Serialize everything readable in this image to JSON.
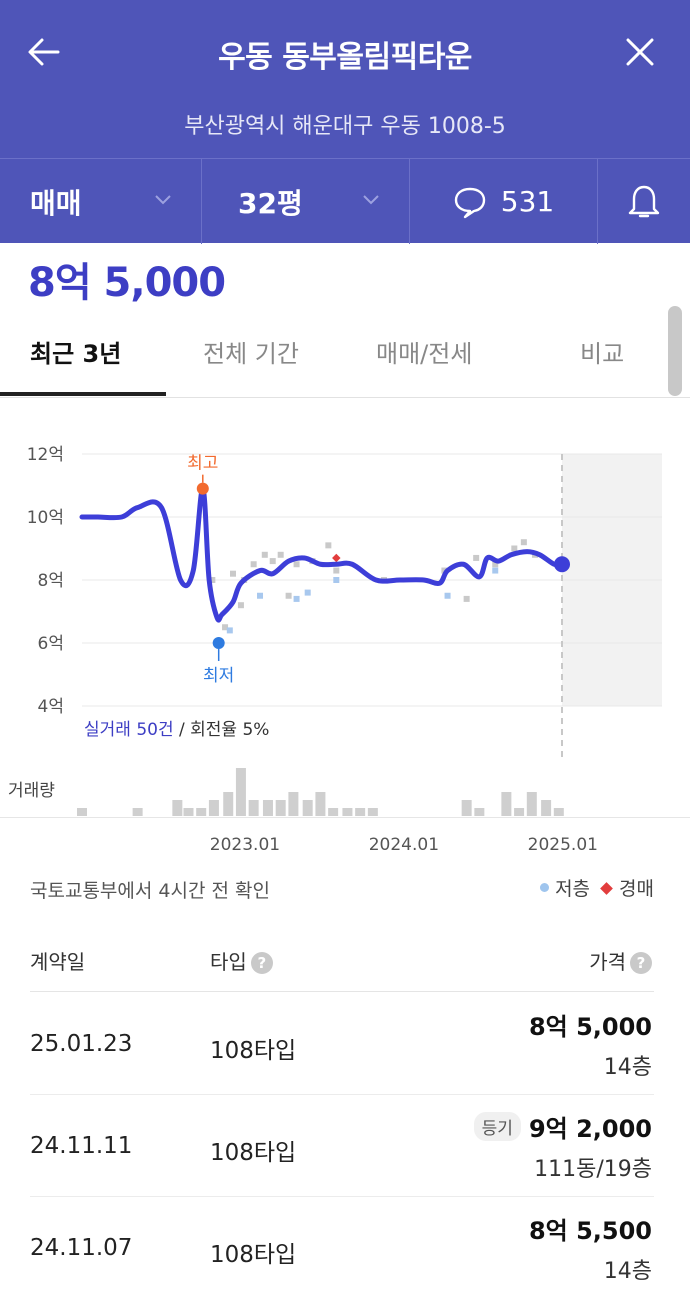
{
  "header": {
    "title": "우동 동부올림픽타운",
    "address": "부산광역시 해운대구 우동 1008-5",
    "bg_color": "#4f55b8"
  },
  "filters": {
    "deal_type": "매매",
    "area": "32평",
    "comment_count": "531"
  },
  "price_now": "8억 5,000",
  "tabs": [
    "최근 3년",
    "전체 기간",
    "매매/전세",
    "비교"
  ],
  "chart_data": {
    "type": "line",
    "y_ticks": [
      "12억",
      "10억",
      "8억",
      "6억",
      "4억"
    ],
    "ylim": [
      4,
      12
    ],
    "x_ticks": [
      "2023.01",
      "2024.01",
      "2025.01"
    ],
    "high_label": "최고",
    "low_label": "최저",
    "summary_highlight": "실거래 50건",
    "summary_rest": " / 회전율 5%",
    "volume_label": "거래량",
    "series": [
      {
        "x": [
          2022.0,
          2022.1,
          2022.25,
          2022.35,
          2022.5,
          2022.62,
          2022.7,
          2022.76,
          2022.8,
          2022.85,
          2022.88,
          2022.95,
          2023.0,
          2023.12,
          2023.2,
          2023.3,
          2023.4,
          2023.5,
          2023.6,
          2023.7,
          2023.85,
          2024.0,
          2024.15,
          2024.25,
          2024.3,
          2024.4,
          2024.5,
          2024.55,
          2024.62,
          2024.7,
          2024.8,
          2024.88,
          2024.97,
          2025.02
        ],
        "y": [
          10.0,
          10.0,
          10.0,
          10.3,
          10.3,
          8.0,
          8.3,
          10.9,
          8.0,
          6.8,
          6.9,
          7.3,
          7.9,
          8.3,
          8.2,
          8.6,
          8.7,
          8.5,
          8.5,
          8.5,
          8.0,
          8.0,
          8.0,
          7.9,
          8.3,
          8.5,
          8.1,
          8.7,
          8.6,
          8.8,
          8.9,
          8.8,
          8.5,
          8.5
        ]
      }
    ],
    "scatter_gray": [
      [
        2022.82,
        8.0
      ],
      [
        2022.9,
        6.5
      ],
      [
        2022.95,
        8.2
      ],
      [
        2023.0,
        7.2
      ],
      [
        2023.02,
        8.0
      ],
      [
        2023.08,
        8.5
      ],
      [
        2023.15,
        8.8
      ],
      [
        2023.2,
        8.6
      ],
      [
        2023.25,
        8.8
      ],
      [
        2023.3,
        7.5
      ],
      [
        2023.35,
        8.5
      ],
      [
        2023.45,
        8.6
      ],
      [
        2023.55,
        9.1
      ],
      [
        2023.6,
        8.3
      ],
      [
        2023.9,
        8.0
      ],
      [
        2024.28,
        8.3
      ],
      [
        2024.42,
        7.4
      ],
      [
        2024.48,
        8.7
      ],
      [
        2024.6,
        8.5
      ],
      [
        2024.72,
        9.0
      ],
      [
        2024.78,
        9.2
      ],
      [
        2024.85,
        8.8
      ]
    ],
    "scatter_blue": [
      [
        2022.93,
        6.4
      ],
      [
        2023.12,
        7.5
      ],
      [
        2023.42,
        7.6
      ],
      [
        2023.35,
        7.4
      ],
      [
        2023.6,
        8.0
      ],
      [
        2024.3,
        7.5
      ],
      [
        2024.6,
        8.3
      ]
    ],
    "scatter_red": [
      [
        2023.6,
        8.7
      ]
    ],
    "volume_x": [
      2022.0,
      2022.35,
      2022.6,
      2022.67,
      2022.75,
      2022.83,
      2022.92,
      2023.0,
      2023.08,
      2023.17,
      2023.25,
      2023.33,
      2023.42,
      2023.5,
      2023.58,
      2023.67,
      2023.75,
      2023.83,
      2024.42,
      2024.5,
      2024.67,
      2024.75,
      2024.83,
      2024.92,
      2025.0
    ],
    "volume": [
      1,
      1,
      2,
      1,
      1,
      2,
      3,
      6,
      2,
      2,
      2,
      3,
      2,
      3,
      1,
      1,
      1,
      1,
      2,
      1,
      3,
      1,
      3,
      2,
      1
    ]
  },
  "confirm_text": "국토교통부에서 4시간 전 확인",
  "legend": {
    "low_floor": "저층",
    "auction": "경매"
  },
  "table": {
    "headers": {
      "date": "계약일",
      "type": "타입",
      "price": "가격"
    },
    "rows": [
      {
        "date": "25.01.23",
        "type": "108타입",
        "badge": "",
        "price": "8억 5,000",
        "floor": "14층"
      },
      {
        "date": "24.11.11",
        "type": "108타입",
        "badge": "등기",
        "price": "9억 2,000",
        "floor": "111동/19층"
      },
      {
        "date": "24.11.07",
        "type": "108타입",
        "badge": "",
        "price": "8억 5,500",
        "floor": "14층"
      }
    ]
  }
}
